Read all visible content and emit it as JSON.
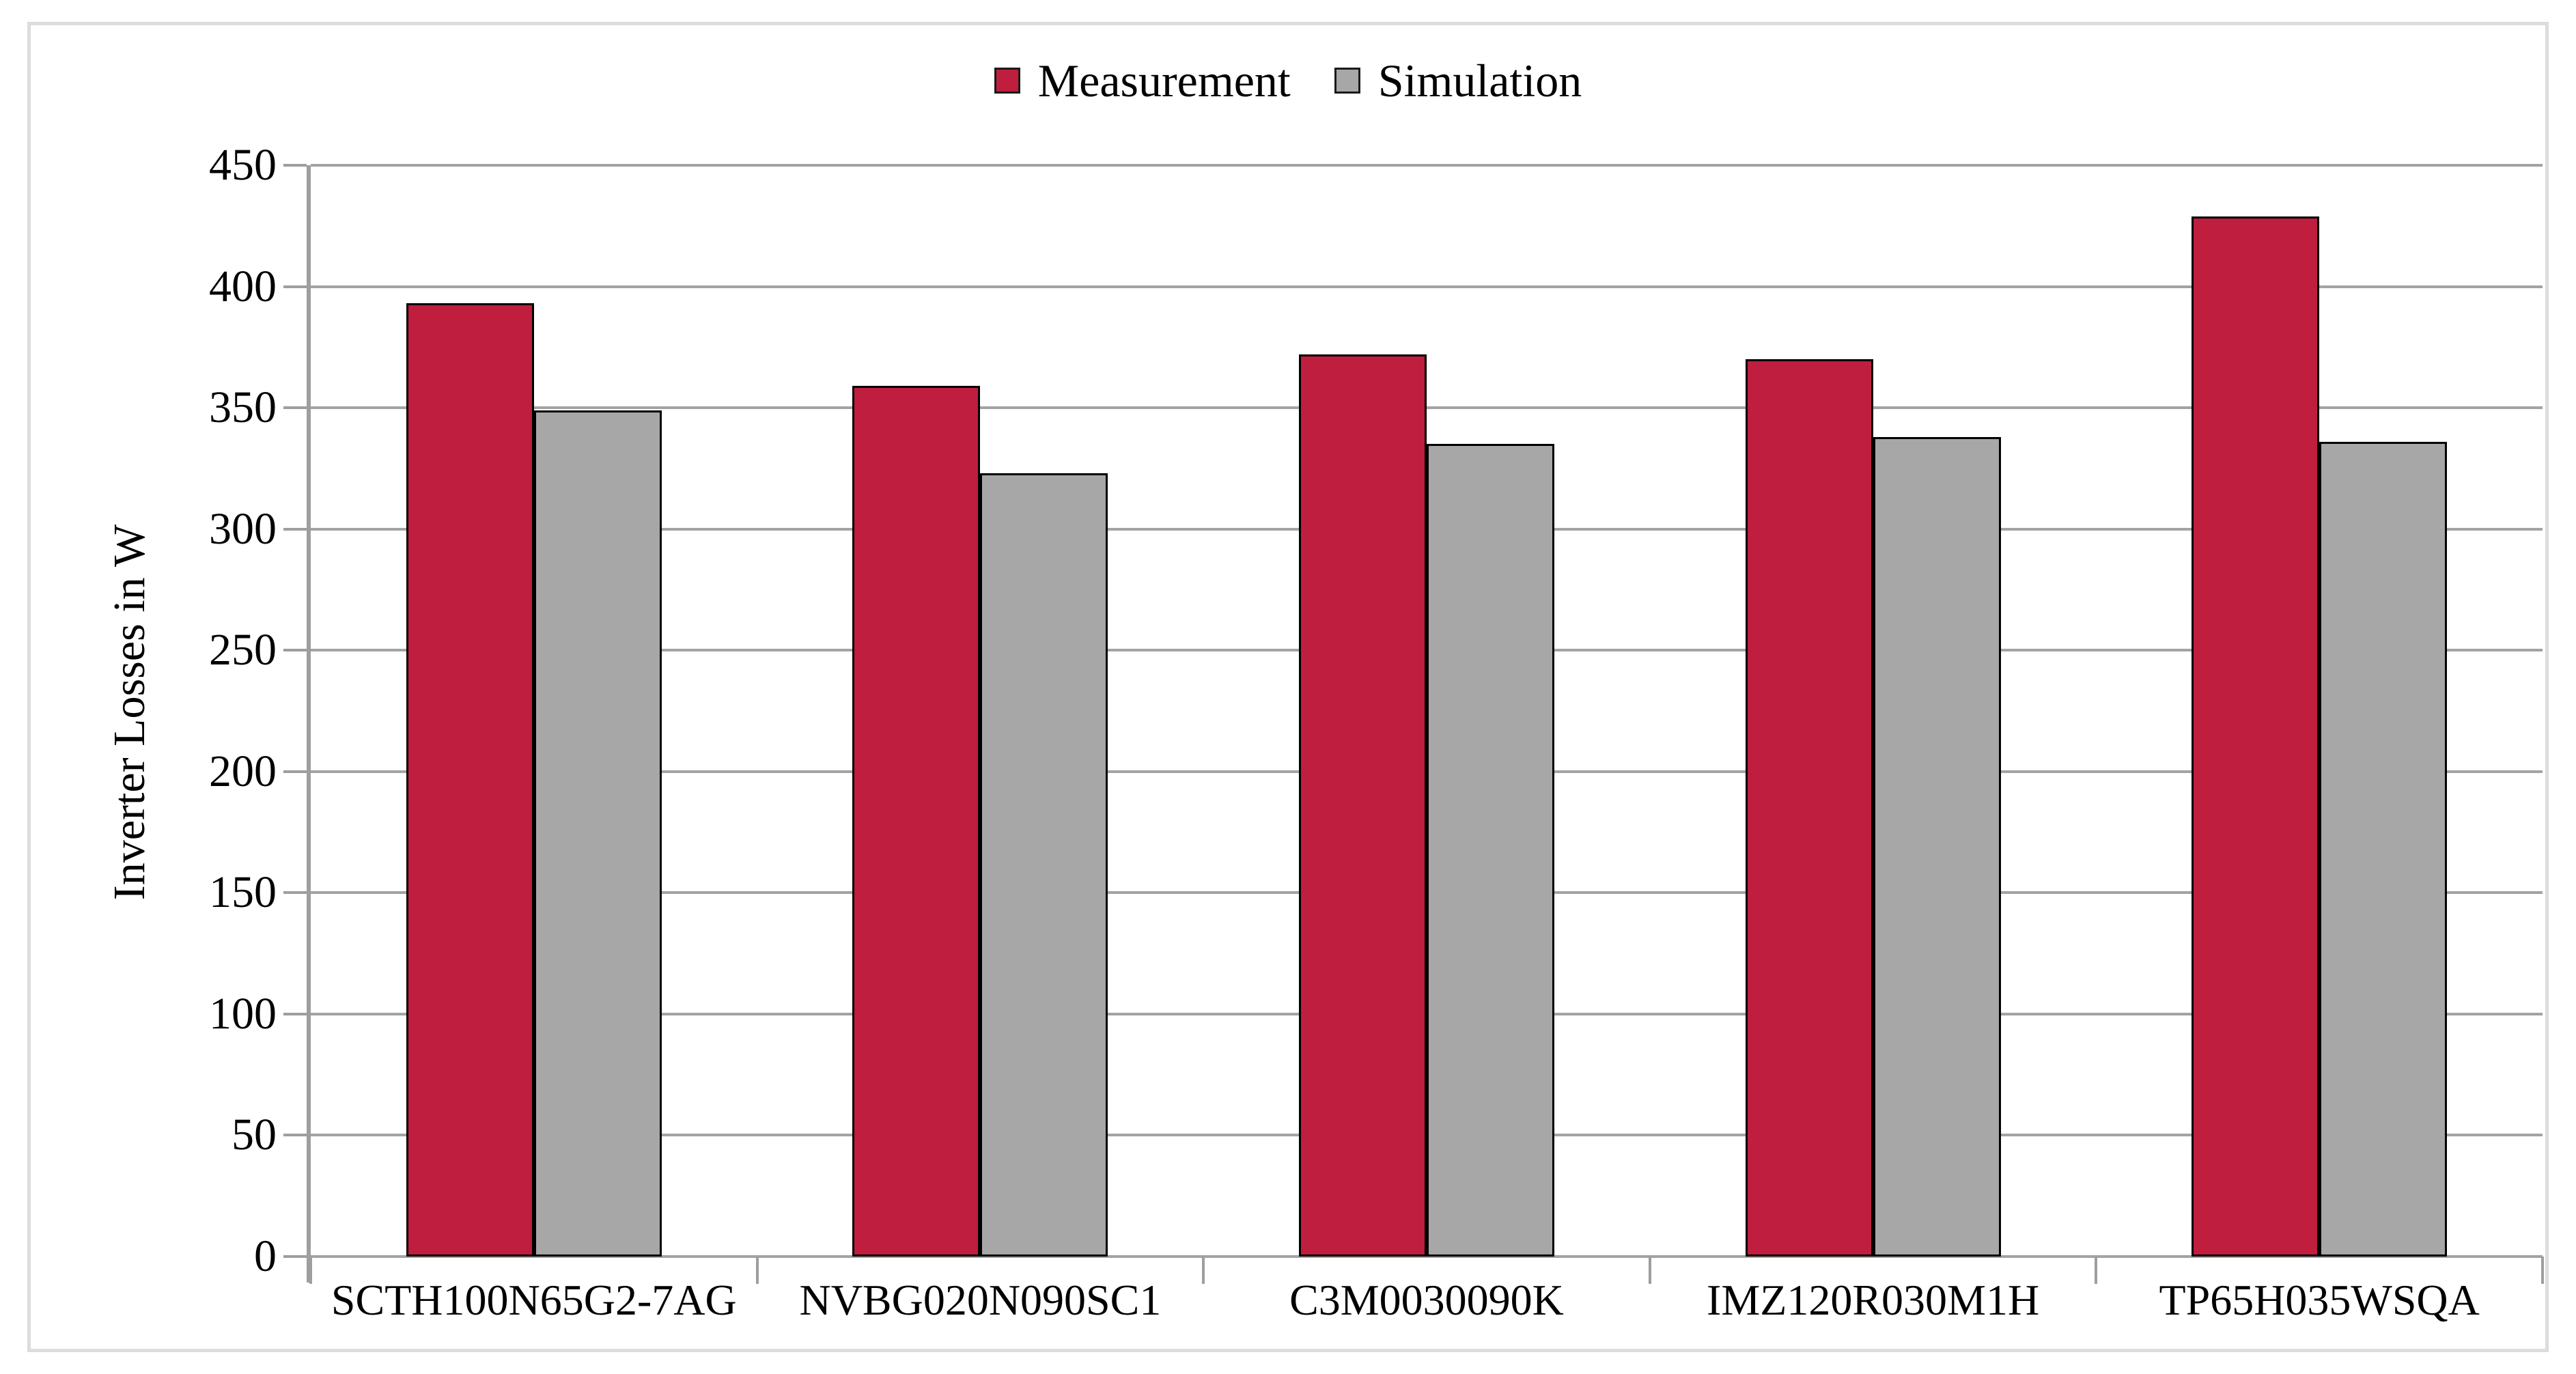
{
  "figure": {
    "background": "#ffffff",
    "frame_border_color": "#dcdcdc"
  },
  "legend": {
    "position": "top-center",
    "items": [
      {
        "label": "Measurement",
        "color": "#bf1e3e"
      },
      {
        "label": "Simulation",
        "color": "#a7a7a7"
      }
    ]
  },
  "chart_data": {
    "type": "bar",
    "title": "",
    "xlabel": "",
    "ylabel": "Inverter Losses in W",
    "categories": [
      "SCTH100N65G2-7AG",
      "NVBG020N090SC1",
      "C3M0030090K",
      "IMZ120R030M1H",
      "TP65H035WSQA"
    ],
    "series": [
      {
        "name": "Measurement",
        "color": "#bf1e3e",
        "values": [
          393,
          359,
          372,
          370,
          429
        ]
      },
      {
        "name": "Simulation",
        "color": "#a7a7a7",
        "values": [
          349,
          323,
          335,
          338,
          336
        ]
      }
    ],
    "ylim": [
      0,
      450
    ],
    "ytick_step": 50,
    "yticks": [
      0,
      50,
      100,
      150,
      200,
      250,
      300,
      350,
      400,
      450
    ],
    "grid": true,
    "gridline_color": "#a3a3a3",
    "bar_outline_color": "#000000",
    "legend_position": "top"
  }
}
